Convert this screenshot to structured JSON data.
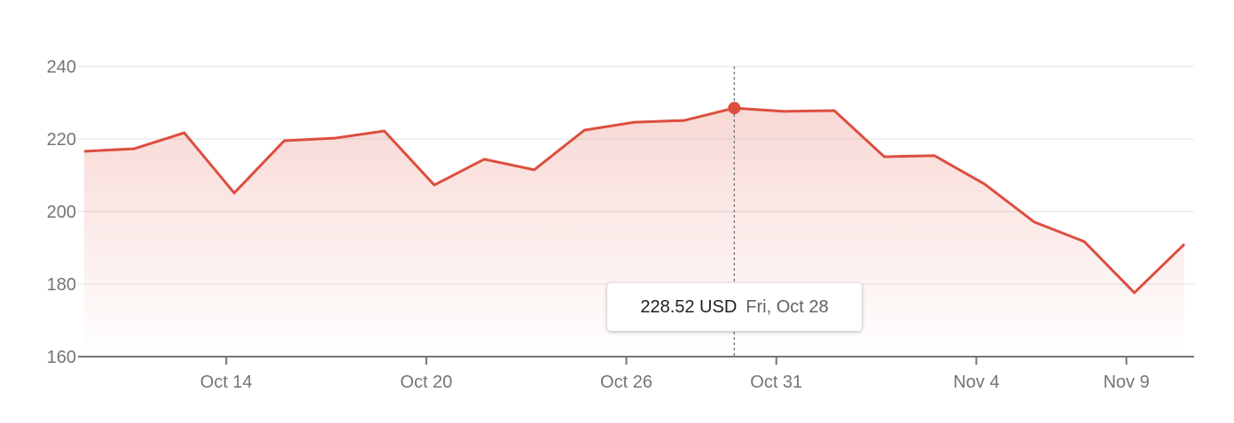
{
  "chart_data": {
    "type": "area",
    "title": "",
    "xlabel": "",
    "ylabel": "",
    "currency": "USD",
    "line_color": "#dc4e3e",
    "ylim": [
      160,
      240
    ],
    "y_ticks": [
      160,
      180,
      200,
      220,
      240
    ],
    "grid": true,
    "x": [
      "Oct 11",
      "Oct 12",
      "Oct 13",
      "Oct 14",
      "Oct 17",
      "Oct 18",
      "Oct 19",
      "Oct 20",
      "Oct 21",
      "Oct 24",
      "Oct 25",
      "Oct 26",
      "Oct 27",
      "Oct 28",
      "Oct 31",
      "Nov 1",
      "Nov 2",
      "Nov 3",
      "Nov 4",
      "Nov 7",
      "Nov 8",
      "Nov 9",
      "Nov 10"
    ],
    "values": [
      216.6,
      217.3,
      221.7,
      205.1,
      219.5,
      220.2,
      222.2,
      207.3,
      214.4,
      211.5,
      222.4,
      224.6,
      225.1,
      228.52,
      227.6,
      227.8,
      215.1,
      215.4,
      207.6,
      197.1,
      191.7,
      177.6,
      191.0
    ],
    "x_tick_labels": [
      {
        "label": "Oct 14",
        "index": 3
      },
      {
        "label": "Oct 20",
        "index": 7
      },
      {
        "label": "Oct 26",
        "index": 11
      },
      {
        "label": "Oct 31",
        "index": 14
      },
      {
        "label": "Nov 4",
        "index": 18
      },
      {
        "label": "Nov 9",
        "index": 21
      }
    ],
    "highlight_index": 13,
    "tooltip": {
      "value": "228.52 USD",
      "date": "Fri, Oct 28"
    }
  }
}
